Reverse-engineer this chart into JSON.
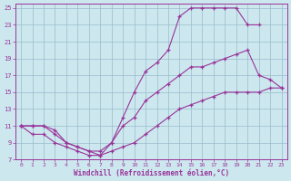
{
  "bg_color": "#cce8ee",
  "line_color": "#993399",
  "grid_color": "#99bbcc",
  "xlabel": "Windchill (Refroidissement éolien,°C)",
  "xlim": [
    -0.5,
    23.5
  ],
  "ylim": [
    7,
    25.5
  ],
  "xticks": [
    0,
    1,
    2,
    3,
    4,
    5,
    6,
    7,
    8,
    9,
    10,
    11,
    12,
    13,
    14,
    15,
    16,
    17,
    18,
    19,
    20,
    21,
    22,
    23
  ],
  "yticks": [
    7,
    9,
    11,
    13,
    15,
    17,
    19,
    21,
    23,
    25
  ],
  "curve_top_x": [
    0,
    1,
    2,
    3,
    4,
    5,
    6,
    7,
    8,
    9,
    10,
    11,
    12,
    13,
    14,
    15,
    16,
    17,
    18,
    19,
    20,
    21
  ],
  "curve_top_y": [
    11,
    11,
    11,
    10.5,
    9,
    8.5,
    8,
    7.5,
    9,
    12,
    15,
    17.5,
    18.5,
    20,
    24,
    25,
    25,
    25,
    25,
    25,
    23,
    23
  ],
  "curve_mid_x": [
    0,
    1,
    2,
    3,
    4,
    5,
    6,
    7,
    8,
    9,
    10,
    11,
    12,
    13,
    14,
    15,
    16,
    17,
    18,
    19,
    20,
    21,
    22,
    23
  ],
  "curve_mid_y": [
    11,
    11,
    11,
    10,
    9,
    8.5,
    8,
    8,
    9,
    11,
    12,
    14,
    15,
    16,
    17,
    18,
    18,
    18.5,
    19,
    19.5,
    20,
    17,
    16.5,
    15.5
  ],
  "curve_bot_x": [
    0,
    1,
    2,
    3,
    4,
    5,
    6,
    7,
    8,
    9,
    10,
    11,
    12,
    13,
    14,
    15,
    16,
    17,
    18,
    19,
    20,
    21,
    22,
    23
  ],
  "curve_bot_y": [
    11,
    10,
    10,
    9,
    8.5,
    8,
    7.5,
    7.5,
    8,
    8.5,
    9,
    10,
    11,
    12,
    13,
    13.5,
    14,
    14.5,
    15,
    15,
    15,
    15,
    15.5,
    15.5
  ]
}
